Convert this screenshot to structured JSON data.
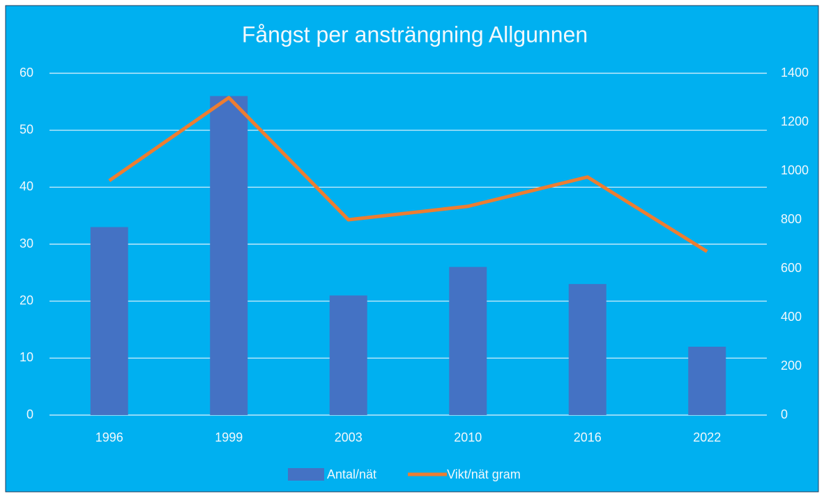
{
  "chart_data": {
    "type": "bar",
    "title": "Fångst per ansträngning Allgunnen",
    "categories": [
      "1996",
      "1999",
      "2003",
      "2010",
      "2016",
      "2022"
    ],
    "series": [
      {
        "name": "Antal/nät",
        "type": "bar",
        "color": "#4472c4",
        "values": [
          33,
          56,
          21,
          26,
          23,
          12
        ]
      },
      {
        "name": "Vikt/nät gram",
        "type": "line",
        "axis": "y2",
        "color": "#ed7d31",
        "values": [
          960,
          1300,
          800,
          855,
          975,
          670
        ]
      }
    ],
    "ylim": [
      0,
      60
    ],
    "yticks": [
      0,
      10,
      20,
      30,
      40,
      50,
      60
    ],
    "y2lim": [
      0,
      1400
    ],
    "y2ticks": [
      0,
      200,
      400,
      600,
      800,
      1000,
      1200,
      1400
    ],
    "grid": true,
    "legend": "bottom",
    "background": "#00b0f0"
  }
}
